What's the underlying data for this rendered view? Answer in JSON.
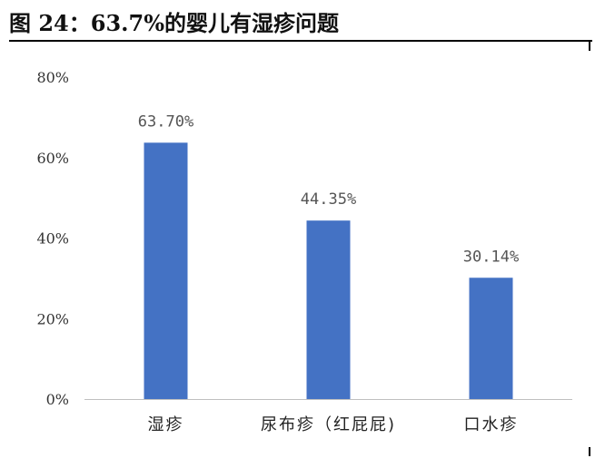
{
  "title": "图 24：63.7%的婴儿有湿疹问题",
  "chart_data": {
    "type": "bar",
    "categories": [
      "湿疹",
      "尿布疹（红屁屁)",
      "口水疹"
    ],
    "values": [
      63.7,
      44.35,
      30.14
    ],
    "value_labels": [
      "63.70%",
      "44.35%",
      "30.14%"
    ],
    "y_ticks": [
      "0%",
      "20%",
      "40%",
      "60%",
      "80%"
    ],
    "ylim": [
      0,
      80
    ],
    "grid": false,
    "bar_color": "#4472C4"
  }
}
